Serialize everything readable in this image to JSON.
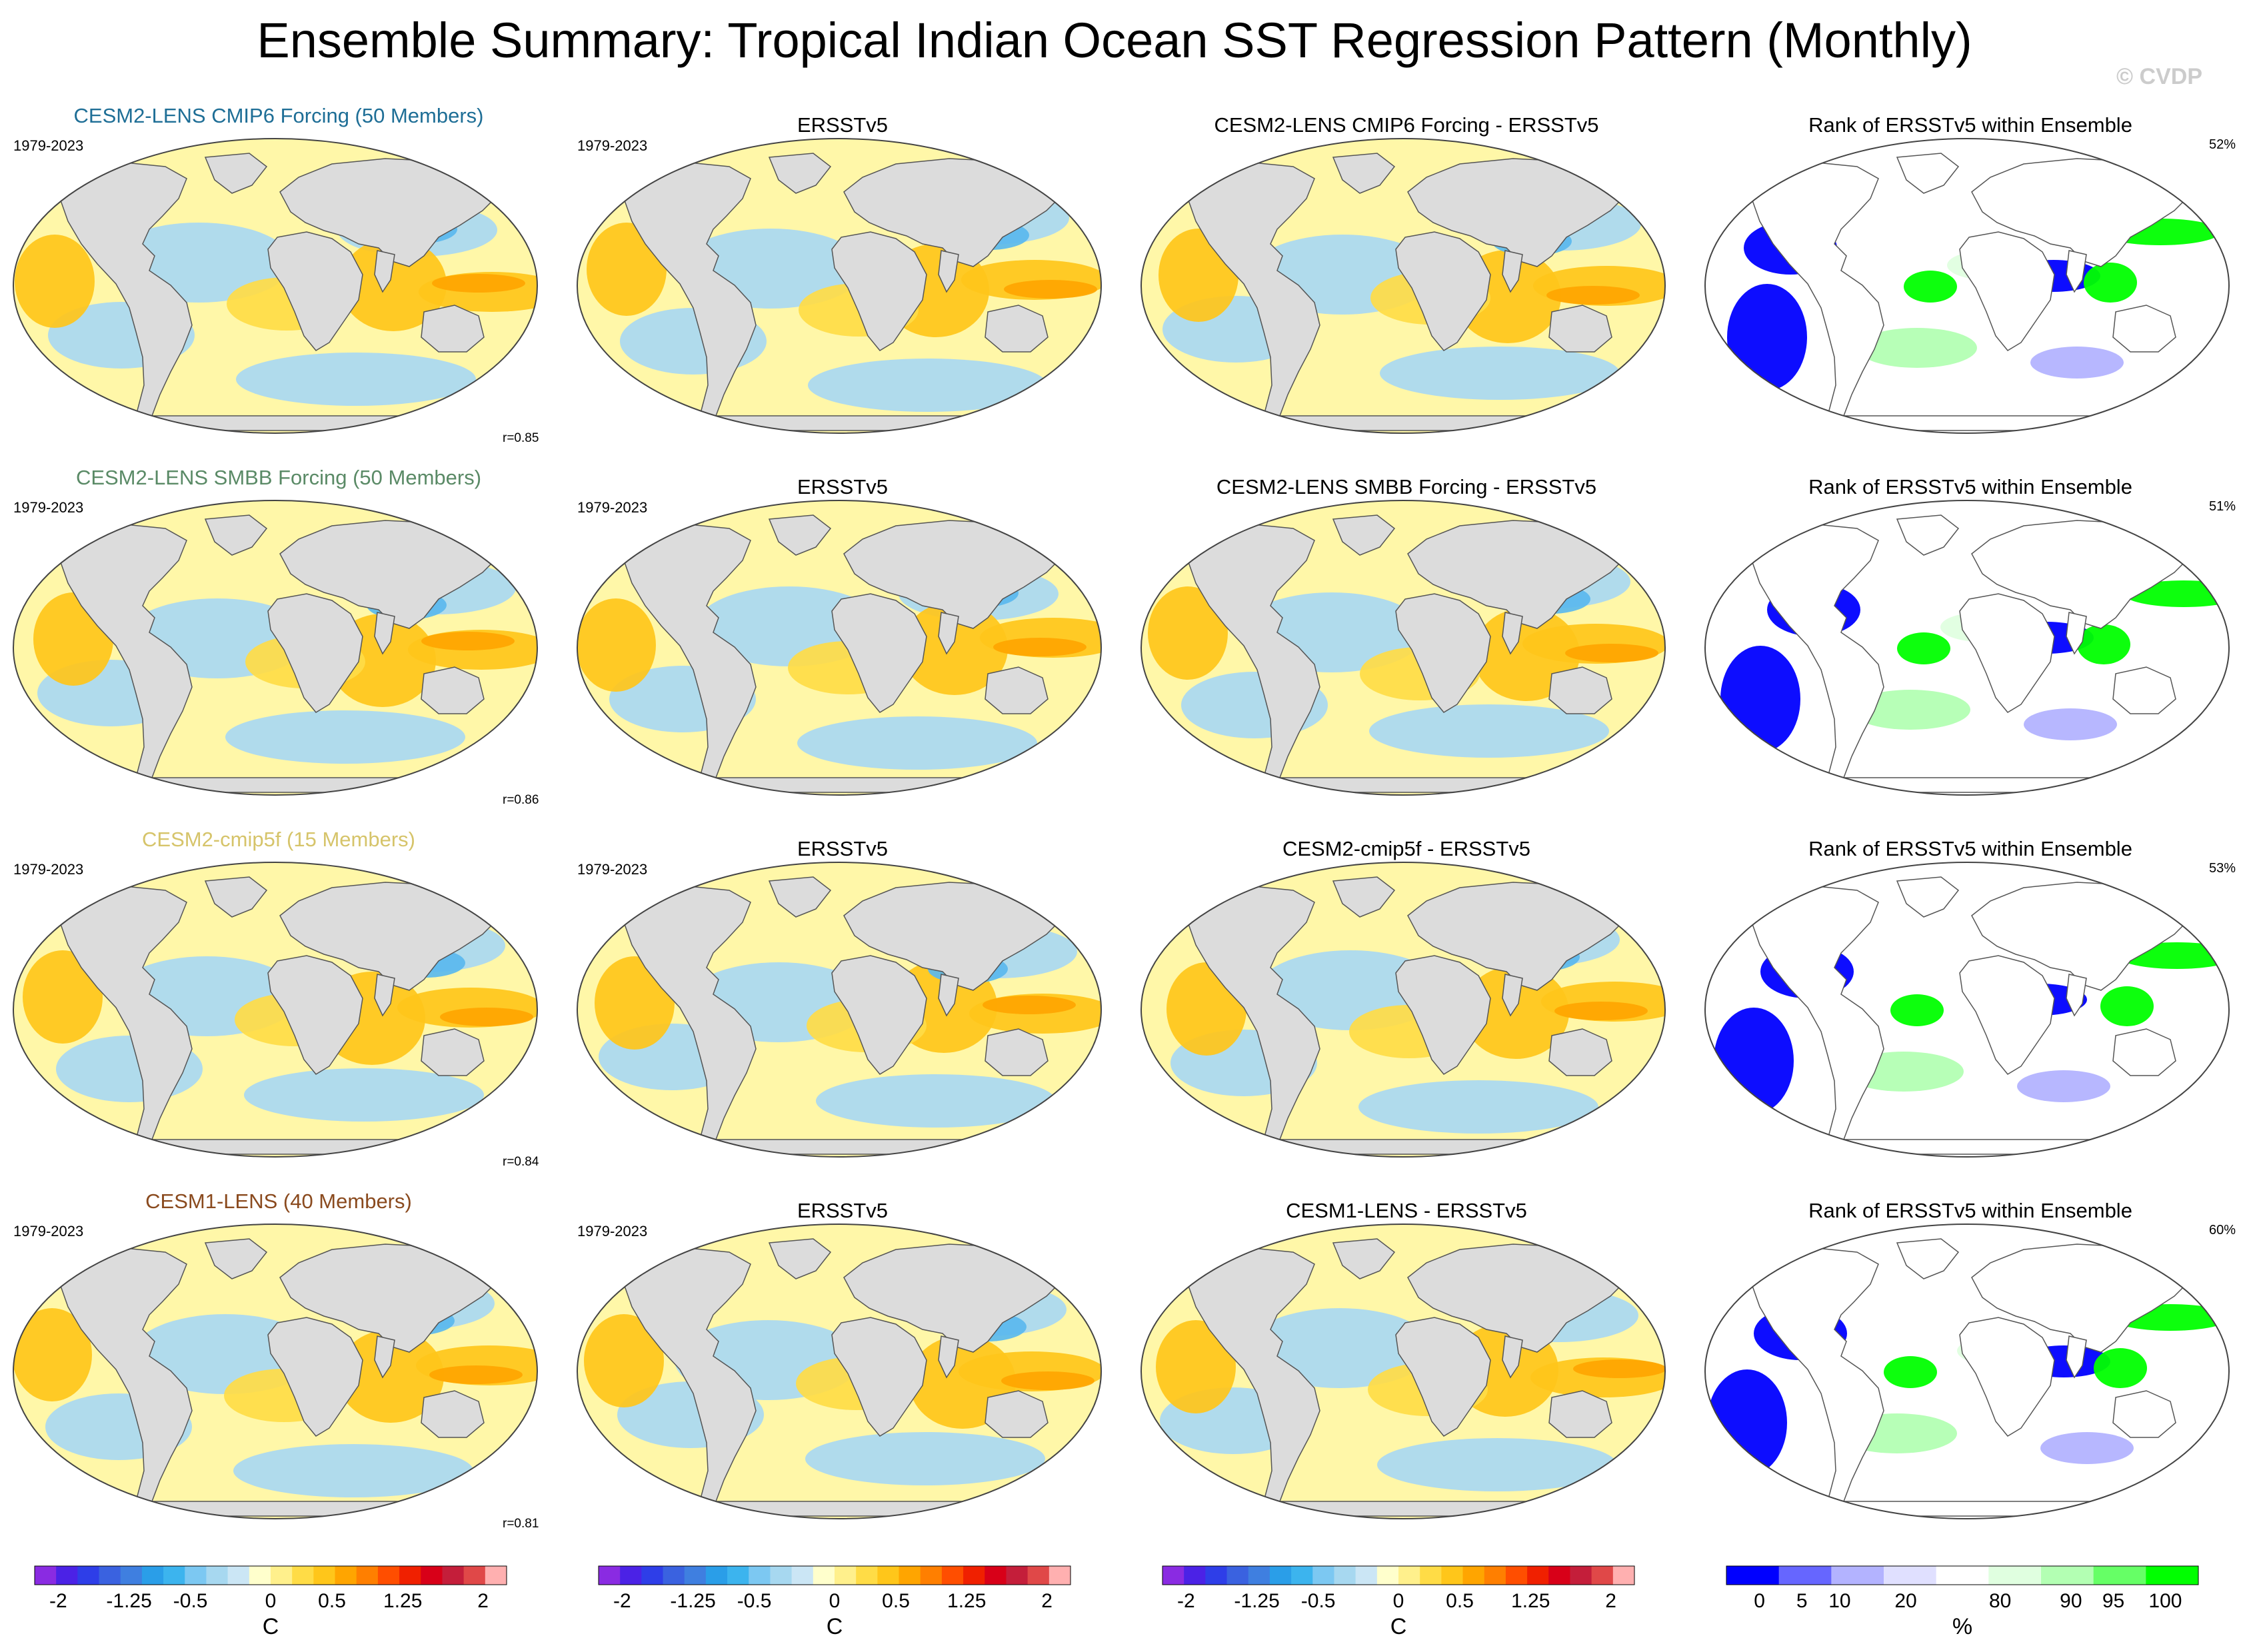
{
  "figure": {
    "title": "Ensemble Summary: Tropical Indian Ocean SST Regression Pattern (Monthly)",
    "watermark": "© CVDP"
  },
  "rows": [
    {
      "model": {
        "title": "CESM2-LENS CMIP6 Forcing (50 Members)",
        "color": "#1e6e96",
        "period": "1979-2023",
        "corr": "r=0.85"
      },
      "obs": {
        "title": "ERSSTv5",
        "period": "1979-2023"
      },
      "diff": {
        "title": "CESM2-LENS CMIP6 Forcing - ERSSTv5"
      },
      "rank": {
        "title": "Rank of ERSSTv5 within Ensemble",
        "pct": "52%"
      }
    },
    {
      "model": {
        "title": "CESM2-LENS SMBB Forcing (50 Members)",
        "color": "#5a8a66",
        "period": "1979-2023",
        "corr": "r=0.86"
      },
      "obs": {
        "title": "ERSSTv5",
        "period": "1979-2023"
      },
      "diff": {
        "title": "CESM2-LENS SMBB Forcing - ERSSTv5"
      },
      "rank": {
        "title": "Rank of ERSSTv5 within Ensemble",
        "pct": "51%"
      }
    },
    {
      "model": {
        "title": "CESM2-cmip5f (15 Members)",
        "color": "#d6c46a",
        "period": "1979-2023",
        "corr": "r=0.84"
      },
      "obs": {
        "title": "ERSSTv5",
        "period": "1979-2023"
      },
      "diff": {
        "title": "CESM2-cmip5f - ERSSTv5"
      },
      "rank": {
        "title": "Rank of ERSSTv5 within Ensemble",
        "pct": "53%"
      }
    },
    {
      "model": {
        "title": "CESM1-LENS (40 Members)",
        "color": "#8a4a1e",
        "period": "1979-2023",
        "corr": "r=0.81"
      },
      "obs": {
        "title": "ERSSTv5",
        "period": "1979-2023"
      },
      "diff": {
        "title": "CESM1-LENS - ERSSTv5"
      },
      "rank": {
        "title": "Rank of ERSSTv5 within Ensemble",
        "pct": "60%"
      }
    }
  ],
  "chart_data": {
    "type": "heatmap",
    "projection": "global map panels in a 4 x 4 grid",
    "sst_colorbar": {
      "unit": "C",
      "tick_labels": [
        "-2",
        "-1.25",
        "-0.5",
        "0",
        "0.5",
        "1.25",
        "2"
      ],
      "colors": [
        "#8a2be2",
        "#4b22e6",
        "#2e3ee8",
        "#3a62e0",
        "#3f7fe0",
        "#2a9ee8",
        "#3cb4ee",
        "#7cc8f2",
        "#a7d8f0",
        "#cbe6f5",
        "#ffffcc",
        "#fff08c",
        "#ffdc46",
        "#ffc61a",
        "#ffa500",
        "#ff7f00",
        "#ff4e00",
        "#f02000",
        "#d80018",
        "#c41e3a",
        "#e04848",
        "#ffb0b0"
      ]
    },
    "rank_colorbar": {
      "unit": "%",
      "tick_labels": [
        "0",
        "5",
        "10",
        "20",
        "80",
        "90",
        "95",
        "100"
      ],
      "colors": [
        "#0000ff",
        "#6666ff",
        "#b3b3ff",
        "#e0e0ff",
        "#ffffff",
        "#e0ffe0",
        "#b3ffb3",
        "#66ff66",
        "#00ff00"
      ]
    }
  }
}
